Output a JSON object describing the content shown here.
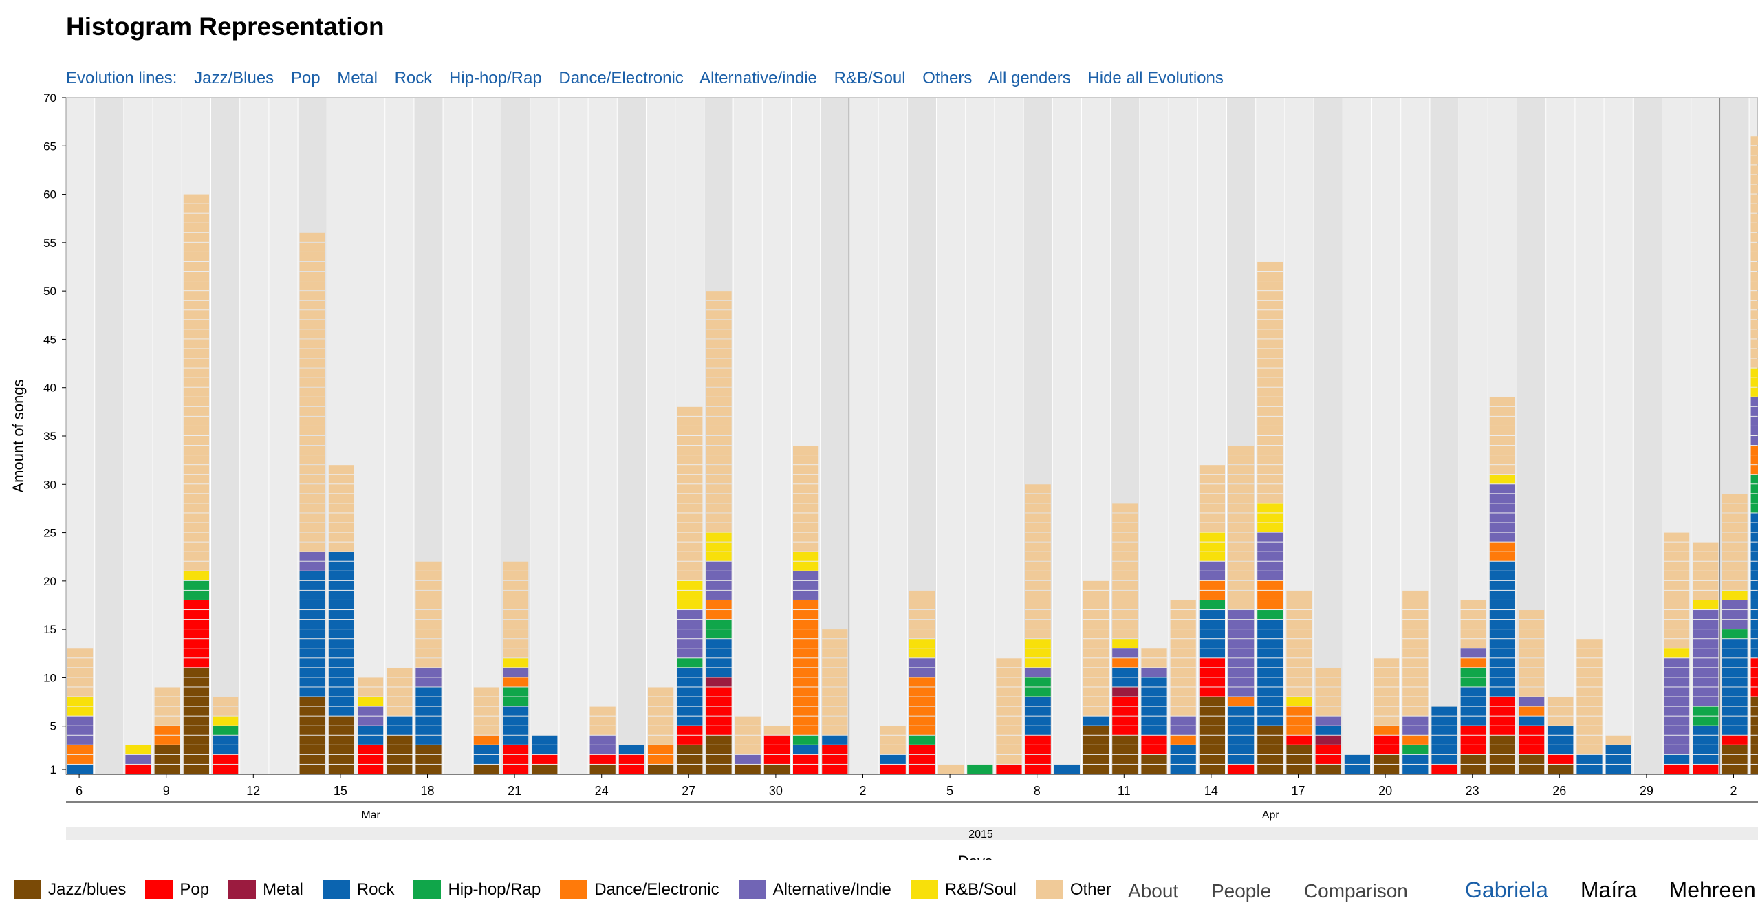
{
  "title": "Histogram Representation",
  "evolution": {
    "label": "Evolution lines:",
    "links": [
      "Jazz/Blues",
      "Pop",
      "Metal",
      "Rock",
      "Hip-hop/Rap",
      "Dance/Electronic",
      "Alternative/indie",
      "R&B/Soul",
      "Others",
      "All genders",
      "Hide all Evolutions"
    ]
  },
  "legend": [
    {
      "name": "Jazz/blues",
      "color": "#7a4a06"
    },
    {
      "name": "Pop",
      "color": "#ff0000"
    },
    {
      "name": "Metal",
      "color": "#9b1b3f"
    },
    {
      "name": "Rock",
      "color": "#0b64b0"
    },
    {
      "name": "Hip-hop/Rap",
      "color": "#10a64a"
    },
    {
      "name": "Dance/Electronic",
      "color": "#ff7a0a"
    },
    {
      "name": "Alternative/Indie",
      "color": "#7165b5"
    },
    {
      "name": "R&B/Soul",
      "color": "#f8e00a"
    },
    {
      "name": "Other",
      "color": "#f0ca98"
    }
  ],
  "nav": [
    "About",
    "People",
    "Comparison"
  ],
  "users": [
    "Gabriela",
    "Maíra",
    "Mehreen"
  ],
  "chart_data": {
    "type": "bar",
    "stacked": true,
    "ylabel": "Amount of songs",
    "xlabel": "Days",
    "ylim": [
      0,
      70
    ],
    "yticks": [
      1,
      5,
      10,
      15,
      20,
      25,
      30,
      35,
      40,
      45,
      50,
      55,
      60,
      65,
      70
    ],
    "year_label": "2015",
    "months": [
      {
        "label": "Mar",
        "day_index": 10
      },
      {
        "label": "Apr",
        "day_index": 41
      }
    ],
    "xtick_labels": [
      {
        "label": "6",
        "day_index": 0
      },
      {
        "label": "9",
        "day_index": 3
      },
      {
        "label": "12",
        "day_index": 6
      },
      {
        "label": "15",
        "day_index": 9
      },
      {
        "label": "18",
        "day_index": 12
      },
      {
        "label": "21",
        "day_index": 15
      },
      {
        "label": "24",
        "day_index": 18
      },
      {
        "label": "27",
        "day_index": 21
      },
      {
        "label": "30",
        "day_index": 24
      },
      {
        "label": "2",
        "day_index": 27
      },
      {
        "label": "5",
        "day_index": 30
      },
      {
        "label": "8",
        "day_index": 33
      },
      {
        "label": "11",
        "day_index": 36
      },
      {
        "label": "14",
        "day_index": 39
      },
      {
        "label": "17",
        "day_index": 42
      },
      {
        "label": "20",
        "day_index": 45
      },
      {
        "label": "23",
        "day_index": 48
      },
      {
        "label": "26",
        "day_index": 51
      },
      {
        "label": "29",
        "day_index": 54
      },
      {
        "label": "2",
        "day_index": 57
      }
    ],
    "day_count": 58,
    "genre_order": [
      "Jazz/blues",
      "Pop",
      "Metal",
      "Rock",
      "Hip-hop/Rap",
      "Dance/Electronic",
      "Alternative/Indie",
      "R&B/Soul",
      "Other"
    ],
    "days": [
      {
        "day": "6",
        "values": [
          0,
          0,
          0,
          1,
          0,
          2,
          3,
          2,
          5
        ]
      },
      {
        "day": "7",
        "values": [
          0,
          0,
          0,
          0,
          0,
          0,
          0,
          0,
          0
        ]
      },
      {
        "day": "8",
        "values": [
          0,
          1,
          0,
          0,
          0,
          0,
          1,
          1,
          0
        ]
      },
      {
        "day": "9",
        "values": [
          3,
          0,
          0,
          0,
          0,
          2,
          0,
          0,
          4
        ]
      },
      {
        "day": "10",
        "values": [
          11,
          7,
          0,
          0,
          2,
          0,
          0,
          1,
          39
        ]
      },
      {
        "day": "11",
        "values": [
          0,
          2,
          0,
          2,
          1,
          0,
          0,
          1,
          2
        ]
      },
      {
        "day": "12",
        "values": [
          0,
          0,
          0,
          0,
          0,
          0,
          0,
          0,
          0
        ]
      },
      {
        "day": "13",
        "values": [
          0,
          0,
          0,
          0,
          0,
          0,
          0,
          0,
          0
        ]
      },
      {
        "day": "14",
        "values": [
          8,
          0,
          0,
          13,
          0,
          0,
          2,
          0,
          33
        ]
      },
      {
        "day": "15",
        "values": [
          6,
          0,
          0,
          17,
          0,
          0,
          0,
          0,
          9
        ]
      },
      {
        "day": "16",
        "values": [
          0,
          3,
          0,
          2,
          0,
          0,
          2,
          1,
          2
        ]
      },
      {
        "day": "17",
        "values": [
          4,
          0,
          0,
          2,
          0,
          0,
          0,
          0,
          5
        ]
      },
      {
        "day": "18",
        "values": [
          3,
          0,
          0,
          6,
          0,
          0,
          2,
          0,
          11
        ]
      },
      {
        "day": "19",
        "values": [
          0,
          0,
          0,
          0,
          0,
          0,
          0,
          0,
          0
        ]
      },
      {
        "day": "20",
        "values": [
          1,
          0,
          0,
          2,
          0,
          1,
          0,
          0,
          5
        ]
      },
      {
        "day": "21",
        "values": [
          0,
          3,
          0,
          4,
          2,
          1,
          1,
          1,
          10
        ]
      },
      {
        "day": "22",
        "values": [
          1,
          1,
          0,
          2,
          0,
          0,
          0,
          0,
          0
        ]
      },
      {
        "day": "23",
        "values": [
          0,
          0,
          0,
          0,
          0,
          0,
          0,
          0,
          0
        ]
      },
      {
        "day": "24",
        "values": [
          1,
          1,
          0,
          0,
          0,
          0,
          2,
          0,
          3
        ]
      },
      {
        "day": "25",
        "values": [
          0,
          2,
          0,
          1,
          0,
          0,
          0,
          0,
          0
        ]
      },
      {
        "day": "26",
        "values": [
          1,
          0,
          0,
          0,
          0,
          2,
          0,
          0,
          6
        ]
      },
      {
        "day": "27",
        "values": [
          3,
          2,
          0,
          6,
          1,
          0,
          5,
          3,
          18
        ]
      },
      {
        "day": "28",
        "values": [
          4,
          5,
          1,
          4,
          2,
          2,
          4,
          3,
          25
        ]
      },
      {
        "day": "29",
        "values": [
          1,
          0,
          0,
          0,
          0,
          0,
          1,
          0,
          4
        ]
      },
      {
        "day": "30",
        "values": [
          1,
          3,
          0,
          0,
          0,
          0,
          0,
          0,
          1
        ]
      },
      {
        "day": "31",
        "values": [
          0,
          2,
          0,
          1,
          1,
          14,
          3,
          2,
          11
        ]
      },
      {
        "day": "1",
        "values": [
          0,
          3,
          0,
          1,
          0,
          0,
          0,
          0,
          11
        ]
      },
      {
        "day": "2",
        "values": [
          0,
          0,
          0,
          0,
          0,
          0,
          0,
          0,
          0
        ]
      },
      {
        "day": "3",
        "values": [
          0,
          1,
          0,
          1,
          0,
          0,
          0,
          0,
          3
        ]
      },
      {
        "day": "4",
        "values": [
          0,
          3,
          0,
          0,
          1,
          6,
          2,
          2,
          5
        ]
      },
      {
        "day": "5",
        "values": [
          0,
          0,
          0,
          0,
          0,
          0,
          0,
          0,
          1
        ]
      },
      {
        "day": "6b",
        "values": [
          0,
          0,
          0,
          0,
          1,
          0,
          0,
          0,
          0
        ]
      },
      {
        "day": "7b",
        "values": [
          0,
          1,
          0,
          0,
          0,
          0,
          0,
          0,
          11
        ]
      },
      {
        "day": "8b",
        "values": [
          0,
          4,
          0,
          4,
          2,
          0,
          1,
          3,
          16
        ]
      },
      {
        "day": "9b",
        "values": [
          0,
          0,
          0,
          1,
          0,
          0,
          0,
          0,
          0
        ]
      },
      {
        "day": "10b",
        "values": [
          5,
          0,
          0,
          1,
          0,
          0,
          0,
          0,
          14
        ]
      },
      {
        "day": "11b",
        "values": [
          4,
          4,
          1,
          2,
          0,
          1,
          1,
          1,
          14
        ]
      },
      {
        "day": "12b",
        "values": [
          2,
          2,
          0,
          6,
          0,
          0,
          1,
          0,
          2
        ]
      },
      {
        "day": "13b",
        "values": [
          0,
          0,
          0,
          3,
          0,
          1,
          2,
          0,
          12
        ]
      },
      {
        "day": "14b",
        "values": [
          8,
          4,
          0,
          5,
          1,
          2,
          2,
          3,
          7
        ]
      },
      {
        "day": "15b",
        "values": [
          0,
          1,
          0,
          6,
          0,
          1,
          9,
          0,
          17
        ]
      },
      {
        "day": "16b",
        "values": [
          5,
          0,
          0,
          11,
          1,
          3,
          5,
          3,
          25
        ]
      },
      {
        "day": "17b",
        "values": [
          3,
          1,
          0,
          0,
          0,
          3,
          0,
          1,
          11
        ]
      },
      {
        "day": "18b",
        "values": [
          1,
          2,
          1,
          1,
          0,
          0,
          1,
          0,
          5
        ]
      },
      {
        "day": "19b",
        "values": [
          0,
          0,
          0,
          2,
          0,
          0,
          0,
          0,
          0
        ]
      },
      {
        "day": "20b",
        "values": [
          2,
          2,
          0,
          0,
          0,
          1,
          0,
          0,
          7
        ]
      },
      {
        "day": "21b",
        "values": [
          0,
          0,
          0,
          2,
          1,
          1,
          2,
          0,
          13
        ]
      },
      {
        "day": "22b",
        "values": [
          0,
          1,
          0,
          6,
          0,
          0,
          0,
          0,
          0
        ]
      },
      {
        "day": "23b",
        "values": [
          2,
          3,
          0,
          4,
          2,
          1,
          1,
          0,
          5
        ]
      },
      {
        "day": "24b",
        "values": [
          4,
          4,
          0,
          14,
          0,
          2,
          6,
          1,
          8
        ]
      },
      {
        "day": "25b",
        "values": [
          2,
          3,
          0,
          1,
          0,
          1,
          1,
          0,
          9
        ]
      },
      {
        "day": "26b",
        "values": [
          1,
          1,
          0,
          3,
          0,
          0,
          0,
          0,
          3
        ]
      },
      {
        "day": "27b",
        "values": [
          0,
          0,
          0,
          2,
          0,
          0,
          0,
          0,
          12
        ]
      },
      {
        "day": "28b",
        "values": [
          0,
          0,
          0,
          3,
          0,
          0,
          0,
          0,
          1
        ]
      },
      {
        "day": "29b",
        "values": [
          0,
          0,
          0,
          0,
          0,
          0,
          0,
          0,
          0
        ]
      },
      {
        "day": "30b",
        "values": [
          0,
          1,
          0,
          1,
          0,
          0,
          10,
          1,
          12
        ]
      },
      {
        "day": "1c",
        "values": [
          0,
          1,
          0,
          4,
          2,
          0,
          10,
          1,
          6
        ]
      },
      {
        "day": "2c",
        "values": [
          3,
          1,
          0,
          10,
          1,
          0,
          3,
          1,
          10
        ]
      },
      {
        "day": "3c",
        "values": [
          8,
          4,
          0,
          15,
          4,
          3,
          5,
          3,
          24
        ]
      }
    ]
  }
}
